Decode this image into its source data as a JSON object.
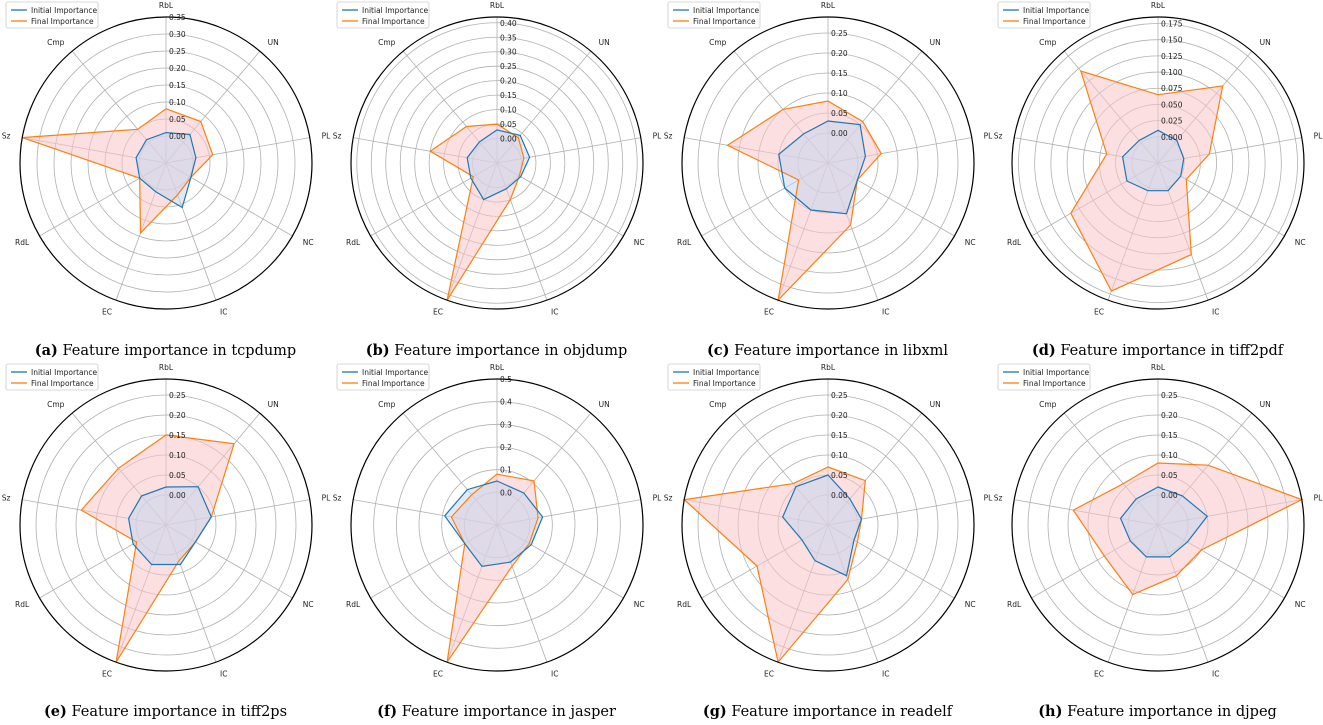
{
  "features": [
    "RbL",
    "UN",
    "PL",
    "NC",
    "IC",
    "EC",
    "RdL",
    "Sz",
    "Cmp"
  ],
  "legend": {
    "initial": "Initial Importance",
    "final": "Final Importance",
    "placement": "top-left"
  },
  "colors": {
    "initial": "#1f77b4",
    "final": "#ff7f0e",
    "fill_initial": "#c9d6ef",
    "fill_final": "#f7c5c8"
  },
  "chart_data": [
    {
      "type": "radar",
      "label": "(a)",
      "caption": "Feature importance in tcpdump",
      "ticks": [
        "0.00",
        "0.05",
        "0.10",
        "0.15",
        "0.20",
        "0.25",
        "0.30",
        "0.35"
      ],
      "rmin": -0.05,
      "rmax": 0.35,
      "series": [
        {
          "name": "Initial Importance",
          "values": [
            0.01,
            0.03,
            0.01,
            0.005,
            0.06,
            0.01,
            0.01,
            0.01,
            0.01
          ]
        },
        {
          "name": "Final Importance",
          "values": [
            0.08,
            0.08,
            0.06,
            0.005,
            0.02,
            0.14,
            0.01,
            0.35,
            0.05
          ]
        }
      ]
    },
    {
      "type": "radar",
      "label": "(b)",
      "caption": "Feature importance in objdump",
      "ticks": [
        "0.00",
        "0.05",
        "0.10",
        "0.15",
        "0.20",
        "0.25",
        "0.30",
        "0.35",
        "0.40"
      ],
      "rmin": -0.05,
      "rmax": 0.42,
      "series": [
        {
          "name": "Initial Importance",
          "values": [
            0.03,
            0.04,
            0.03,
            0.01,
            0.01,
            0.05,
            0.02,
            0.02,
            0.01
          ]
        },
        {
          "name": "Final Importance",
          "values": [
            0.05,
            0.03,
            0.01,
            0.005,
            0.05,
            0.42,
            0.01,
            0.15,
            0.08
          ]
        }
      ]
    },
    {
      "type": "radar",
      "label": "(c)",
      "caption": "Feature importance in libxml",
      "ticks": [
        "0.00",
        "0.05",
        "0.10",
        "0.15",
        "0.20",
        "0.25"
      ],
      "rmin": -0.05,
      "rmax": 0.29,
      "series": [
        {
          "name": "Initial Importance",
          "values": [
            0.03,
            0.05,
            0.02,
            0.01,
            0.06,
            0.05,
            0.05,
            0.05,
            0.02
          ]
        },
        {
          "name": "Final Importance",
          "values": [
            0.08,
            0.06,
            0.06,
            0.01,
            0.09,
            0.29,
            0.01,
            0.18,
            0.1
          ]
        }
      ]
    },
    {
      "type": "radar",
      "label": "(d)",
      "caption": "Feature importance in tiff2pdf",
      "ticks": [
        "0.000",
        "0.025",
        "0.050",
        "0.075",
        "0.100",
        "0.125",
        "0.150",
        "0.175"
      ],
      "rmin": -0.025,
      "rmax": 0.185,
      "series": [
        {
          "name": "Initial Importance",
          "values": [
            0.01,
            0.005,
            0.0,
            0.0,
            0.005,
            0.005,
            0.015,
            0.015,
            0.005
          ]
        },
        {
          "name": "Final Importance",
          "values": [
            0.065,
            0.115,
            0.04,
            0.01,
            0.11,
            0.17,
            0.115,
            0.04,
            0.145
          ]
        }
      ]
    },
    {
      "type": "radar",
      "label": "(e)",
      "caption": "Feature importance in tiff2ps",
      "ticks": [
        "0.00",
        "0.05",
        "0.10",
        "0.15",
        "0.20",
        "0.25"
      ],
      "rmin": -0.05,
      "rmax": 0.29,
      "series": [
        {
          "name": "Initial Importance",
          "values": [
            0.02,
            0.05,
            0.04,
            0.01,
            0.03,
            0.03,
            0.02,
            0.02,
            0.02
          ]
        },
        {
          "name": "Final Importance",
          "values": [
            0.15,
            0.19,
            0.04,
            0.01,
            0.02,
            0.29,
            0.01,
            0.14,
            0.11
          ]
        }
      ]
    },
    {
      "type": "radar",
      "label": "(f)",
      "caption": "Feature importance in jasper",
      "ticks": [
        "0.0",
        "0.1",
        "0.2",
        "0.3",
        "0.4",
        "0.5"
      ],
      "rmin": -0.1,
      "rmax": 0.5,
      "series": [
        {
          "name": "Initial Importance",
          "values": [
            0.05,
            0.04,
            0.06,
            0.03,
            0.03,
            0.05,
            0.02,
            0.09,
            0.06
          ]
        },
        {
          "name": "Final Importance",
          "values": [
            0.08,
            0.11,
            0.04,
            0.02,
            0.05,
            0.5,
            0.02,
            0.06,
            0.03
          ]
        }
      ]
    },
    {
      "type": "radar",
      "label": "(g)",
      "caption": "Feature importance in readelf",
      "ticks": [
        "0.00",
        "0.05",
        "0.10",
        "0.15",
        "0.20",
        "0.25"
      ],
      "rmin": -0.05,
      "rmax": 0.29,
      "series": [
        {
          "name": "Initial Importance",
          "values": [
            0.05,
            0.01,
            0.01,
            0.0,
            0.06,
            0.02,
            0.0,
            0.04,
            0.05
          ]
        },
        {
          "name": "Final Importance",
          "values": [
            0.07,
            0.07,
            0.01,
            0.01,
            0.07,
            0.29,
            0.13,
            0.29,
            0.06
          ]
        }
      ]
    },
    {
      "type": "radar",
      "label": "(h)",
      "caption": "Feature importance in djpeg",
      "ticks": [
        "0.00",
        "0.05",
        "0.10",
        "0.15",
        "0.20",
        "0.25"
      ],
      "rmin": -0.05,
      "rmax": 0.29,
      "series": [
        {
          "name": "Initial Importance",
          "values": [
            0.02,
            0.02,
            0.05,
            0.01,
            0.01,
            0.01,
            0.005,
            0.02,
            0.01
          ]
        },
        {
          "name": "Final Importance",
          "values": [
            0.08,
            0.12,
            0.29,
            0.05,
            0.06,
            0.11,
            0.08,
            0.14,
            0.06
          ]
        }
      ]
    }
  ]
}
